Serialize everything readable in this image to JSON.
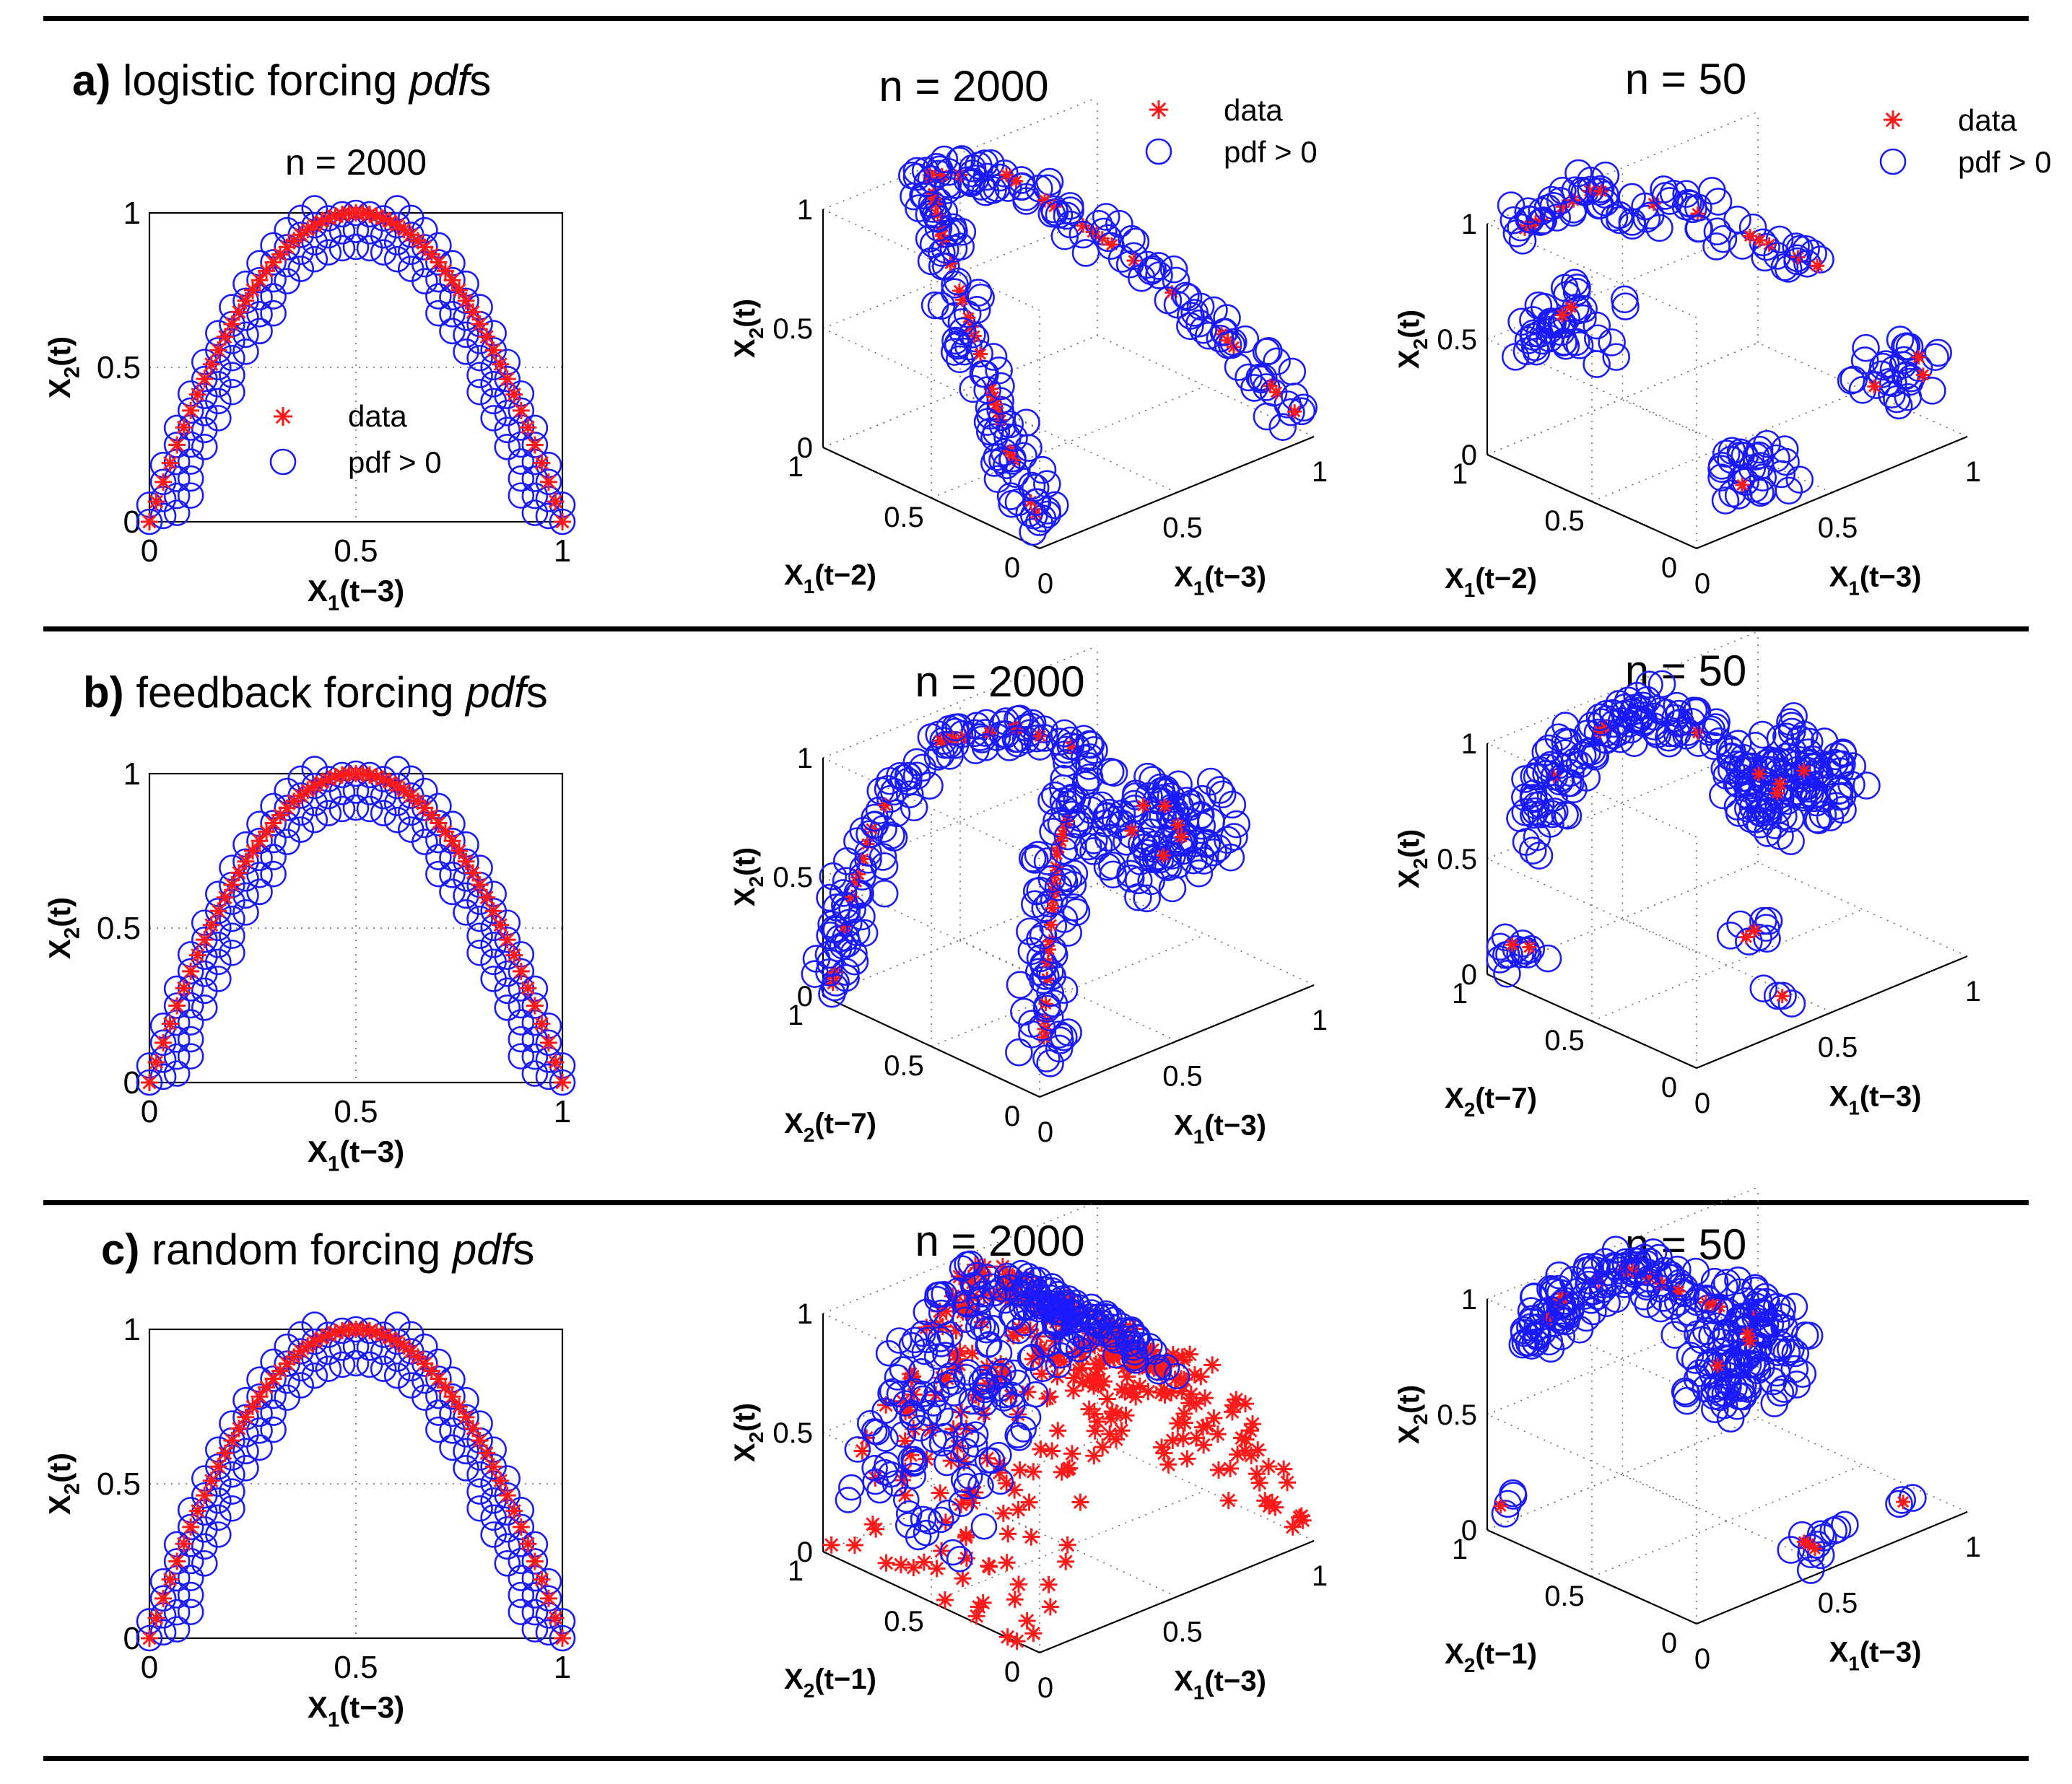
{
  "colors": {
    "data": "#ff1a1a",
    "pdf": "#1a1aff",
    "axis": "#000000",
    "grid": "#555555"
  },
  "panels": [
    {
      "id": "a",
      "label_letter": "a)",
      "label_text": "logistic forcing ",
      "label_italic": "pdf",
      "label_suffix": "s",
      "chart_2d": {
        "title": "n = 2000",
        "xlabel": "X1(t−3)",
        "ylabel": "X2(t)"
      },
      "chart_3d_large": {
        "title": "n = 2000",
        "xlabel": "X1(t−3)",
        "ylabel": "X1(t−2)",
        "zlabel": "X2(t)"
      },
      "chart_3d_small": {
        "title": "n = 50",
        "xlabel": "X1(t−3)",
        "ylabel": "X1(t−2)",
        "zlabel": "X2(t)"
      }
    },
    {
      "id": "b",
      "label_letter": "b)",
      "label_text": "feedback forcing ",
      "label_italic": "pdf",
      "label_suffix": "s",
      "chart_2d": {
        "title": "",
        "xlabel": "X1(t−3)",
        "ylabel": "X2(t)"
      },
      "chart_3d_large": {
        "title": "n = 2000",
        "xlabel": "X1(t−3)",
        "ylabel": "X2(t−7)",
        "zlabel": "X2(t)"
      },
      "chart_3d_small": {
        "title": "n = 50",
        "xlabel": "X1(t−3)",
        "ylabel": "X2(t−7)",
        "zlabel": "X2(t)"
      }
    },
    {
      "id": "c",
      "label_letter": "c)",
      "label_text": "random forcing ",
      "label_italic": "pdf",
      "label_suffix": "s",
      "chart_2d": {
        "title": "",
        "xlabel": "X1(t−3)",
        "ylabel": "X2(t)"
      },
      "chart_3d_large": {
        "title": "n = 2000",
        "xlabel": "X1(t−3)",
        "ylabel": "X2(t−1)",
        "zlabel": "X2(t)"
      },
      "chart_3d_small": {
        "title": "n = 50",
        "xlabel": "X1(t−3)",
        "ylabel": "X2(t−1)",
        "zlabel": "X2(t)"
      }
    }
  ],
  "legend": {
    "data": "data",
    "pdf": "pdf > 0"
  },
  "chart_data": [
    {
      "type": "scatter",
      "panel": "a",
      "title": "n = 2000",
      "xlabel": "X1(t−3)",
      "ylabel": "X2(t)",
      "xlim": [
        0,
        1
      ],
      "ylim": [
        0,
        1
      ],
      "xticks": [
        0,
        0.5,
        1
      ],
      "yticks": [
        0,
        0.5,
        1
      ],
      "grid": true,
      "legend_position": "center",
      "series": [
        {
          "name": "data",
          "marker": "asterisk",
          "relation": "y = 4x(1−x)"
        },
        {
          "name": "pdf > 0",
          "marker": "circle",
          "relation": "band around y = 4x(1−x)"
        }
      ]
    },
    {
      "type": "scatter",
      "panel": "b",
      "title": "",
      "xlabel": "X1(t−3)",
      "ylabel": "X2(t)",
      "xlim": [
        0,
        1
      ],
      "ylim": [
        0,
        1
      ],
      "xticks": [
        0,
        0.5,
        1
      ],
      "yticks": [
        0,
        0.5,
        1
      ],
      "grid": true,
      "series": [
        {
          "name": "data",
          "marker": "asterisk",
          "relation": "y = 4x(1−x)"
        },
        {
          "name": "pdf > 0",
          "marker": "circle",
          "relation": "band around y = 4x(1−x)"
        }
      ]
    },
    {
      "type": "scatter",
      "panel": "c",
      "title": "",
      "xlabel": "X1(t−3)",
      "ylabel": "X2(t)",
      "xlim": [
        0,
        1
      ],
      "ylim": [
        0,
        1
      ],
      "xticks": [
        0,
        0.5,
        1
      ],
      "yticks": [
        0,
        0.5,
        1
      ],
      "grid": true,
      "series": [
        {
          "name": "data",
          "marker": "asterisk",
          "relation": "y = 4x(1−x)"
        },
        {
          "name": "pdf > 0",
          "marker": "circle",
          "relation": "band around y = 4x(1−x)"
        }
      ]
    },
    {
      "type": "scatter",
      "panel": "a",
      "dims": 3,
      "title": "n = 2000",
      "xlabel": "X1(t−3)",
      "ylabel": "X1(t−2)",
      "zlabel": "X2(t)",
      "xticks": [
        0,
        0.5,
        1
      ],
      "yticks": [
        0,
        0.5,
        1
      ],
      "zticks": [
        0,
        0.5,
        1
      ],
      "legend_position": "top-right",
      "series": [
        {
          "name": "data",
          "marker": "asterisk",
          "points": [
            [
              0.02,
              0.08,
              0.08
            ],
            [
              0.1,
              0.35,
              0.36
            ],
            [
              0.25,
              0.75,
              0.75
            ],
            [
              0.45,
              0.98,
              0.98
            ],
            [
              0.55,
              0.99,
              0.99
            ],
            [
              0.7,
              0.84,
              0.84
            ],
            [
              0.85,
              0.51,
              0.51
            ],
            [
              0.97,
              0.12,
              0.12
            ],
            [
              0.05,
              0.02,
              0.05
            ]
          ]
        },
        {
          "name": "pdf > 0",
          "marker": "circle",
          "relation": "band along data points"
        }
      ]
    },
    {
      "type": "scatter",
      "panel": "a",
      "dims": 3,
      "title": "n = 50",
      "xlabel": "X1(t−3)",
      "ylabel": "X1(t−2)",
      "zlabel": "X2(t)",
      "xticks": [
        0,
        0.5,
        1
      ],
      "yticks": [
        0,
        0.5,
        1
      ],
      "zticks": [
        0,
        0.5,
        1
      ],
      "legend_position": "top-right",
      "series": [
        {
          "name": "data",
          "marker": "asterisk",
          "points": [
            [
              0.12,
              0.9,
              0.82
            ],
            [
              0.3,
              0.95,
              0.95
            ],
            [
              0.5,
              0.97,
              0.9
            ],
            [
              0.72,
              0.7,
              0.7
            ],
            [
              0.1,
              0.55,
              0.6
            ],
            [
              0.95,
              0.2,
              0.15
            ],
            [
              0.05,
              0.1,
              0.1
            ]
          ]
        },
        {
          "name": "pdf > 0",
          "marker": "circle",
          "relation": "clusters around data points"
        }
      ]
    },
    {
      "type": "scatter",
      "panel": "b",
      "dims": 3,
      "title": "n = 2000",
      "xlabel": "X1(t−3)",
      "ylabel": "X2(t−7)",
      "zlabel": "X2(t)",
      "xticks": [
        0,
        0.5,
        1
      ],
      "yticks": [
        0,
        0.5,
        1
      ],
      "zticks": [
        0,
        0.5,
        1
      ],
      "series": [
        {
          "name": "data",
          "marker": "asterisk",
          "points": [
            [
              0.02,
              0.95,
              0.05
            ],
            [
              0.2,
              0.9,
              0.6
            ],
            [
              0.5,
              0.85,
              0.98
            ],
            [
              0.75,
              0.6,
              0.8
            ],
            [
              0.8,
              0.3,
              0.5
            ],
            [
              0.1,
              0.1,
              0.2
            ],
            [
              0.3,
              0.2,
              0.7
            ]
          ]
        },
        {
          "name": "pdf > 0",
          "marker": "circle",
          "relation": "band along data points"
        }
      ]
    },
    {
      "type": "scatter",
      "panel": "b",
      "dims": 3,
      "title": "n = 50",
      "xlabel": "X1(t−3)",
      "ylabel": "X2(t−7)",
      "zlabel": "X2(t)",
      "xticks": [
        0,
        0.5,
        1
      ],
      "yticks": [
        0,
        0.5,
        1
      ],
      "zticks": [
        0,
        0.5,
        1
      ],
      "series": [
        {
          "name": "data",
          "marker": "asterisk",
          "points": [
            [
              0.1,
              0.9,
              0.85
            ],
            [
              0.4,
              0.85,
              0.98
            ],
            [
              0.7,
              0.6,
              0.7
            ],
            [
              0.05,
              0.9,
              0.2
            ],
            [
              0.5,
              0.3,
              0.2
            ],
            [
              0.45,
              0.1,
              0.05
            ]
          ]
        },
        {
          "name": "pdf > 0",
          "marker": "circle",
          "relation": "clusters around data points"
        }
      ]
    },
    {
      "type": "scatter",
      "panel": "c",
      "dims": 3,
      "title": "n = 2000",
      "xlabel": "X1(t−3)",
      "ylabel": "X2(t−1)",
      "zlabel": "X2(t)",
      "xticks": [
        0,
        0.5,
        1
      ],
      "yticks": [
        0,
        0.5,
        1
      ],
      "zticks": [
        0,
        0.5,
        1
      ],
      "series": [
        {
          "name": "data",
          "marker": "asterisk",
          "relation": "surface z = 4x(1−x), y ∈ [0,1]"
        },
        {
          "name": "pdf > 0",
          "marker": "circle",
          "relation": "upper portion of surface"
        }
      ]
    },
    {
      "type": "scatter",
      "panel": "c",
      "dims": 3,
      "title": "n = 50",
      "xlabel": "X1(t−3)",
      "ylabel": "X2(t−1)",
      "zlabel": "X2(t)",
      "xticks": [
        0,
        0.5,
        1
      ],
      "yticks": [
        0,
        0.5,
        1
      ],
      "zticks": [
        0,
        0.5,
        1
      ],
      "series": [
        {
          "name": "data",
          "marker": "asterisk",
          "points": [
            [
              0.1,
              0.85,
              0.9
            ],
            [
              0.4,
              0.8,
              0.98
            ],
            [
              0.7,
              0.6,
              0.75
            ],
            [
              0.9,
              0.2,
              0.35
            ],
            [
              0.02,
              0.9,
              0.15
            ],
            [
              0.5,
              0.1,
              0.05
            ],
            [
              0.8,
              0.05,
              0.1
            ]
          ]
        },
        {
          "name": "pdf > 0",
          "marker": "circle",
          "relation": "clusters around data points"
        }
      ]
    }
  ]
}
